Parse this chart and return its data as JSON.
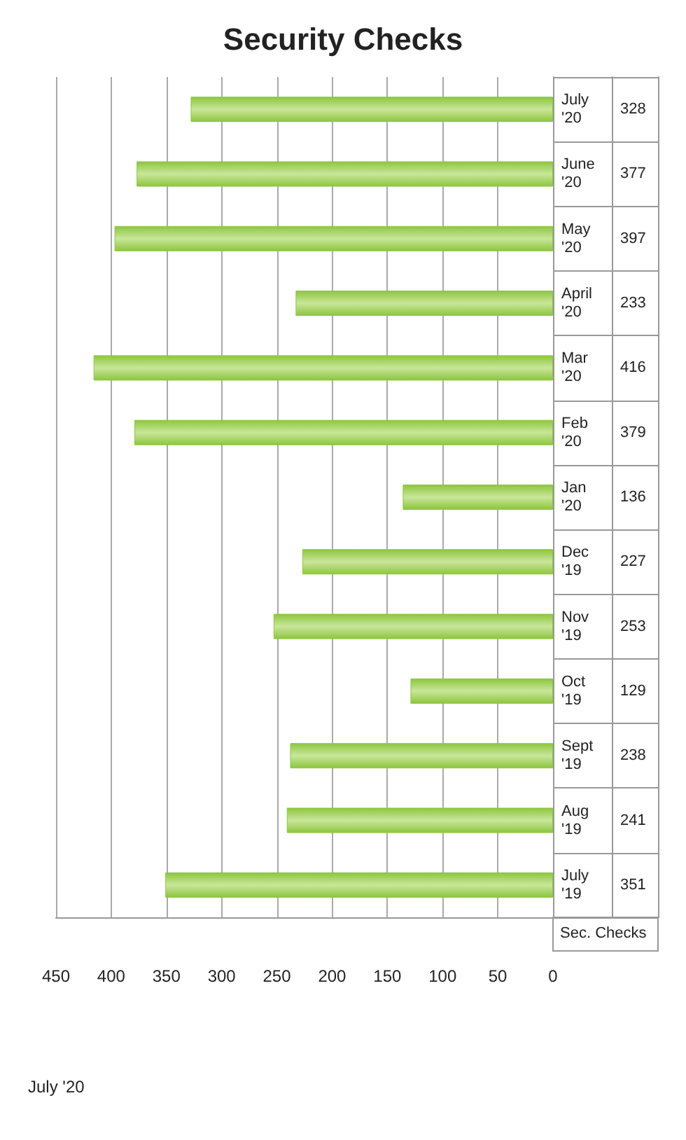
{
  "chart_data": {
    "type": "bar",
    "orientation": "horizontal",
    "title": "Security Checks",
    "annotations": [
      "July '20"
    ],
    "categories": [
      "July '20",
      "June '20",
      "May '20",
      "April '20",
      "Mar '20",
      "Feb '20",
      "Jan '20",
      "Dec '19",
      "Nov '19",
      "Oct '19",
      "Sept '19",
      "Aug '19",
      "July '19"
    ],
    "series": [
      {
        "name": "Sec. Checks",
        "color": "#8dc63f",
        "values": [
          328,
          377,
          397,
          233,
          416,
          379,
          136,
          227,
          253,
          129,
          238,
          241,
          351
        ]
      }
    ],
    "xlim": [
      450,
      0
    ],
    "xticks": [
      450,
      400,
      350,
      300,
      250,
      200,
      150,
      100,
      50,
      0
    ],
    "grid": "x",
    "data_labels": true
  }
}
